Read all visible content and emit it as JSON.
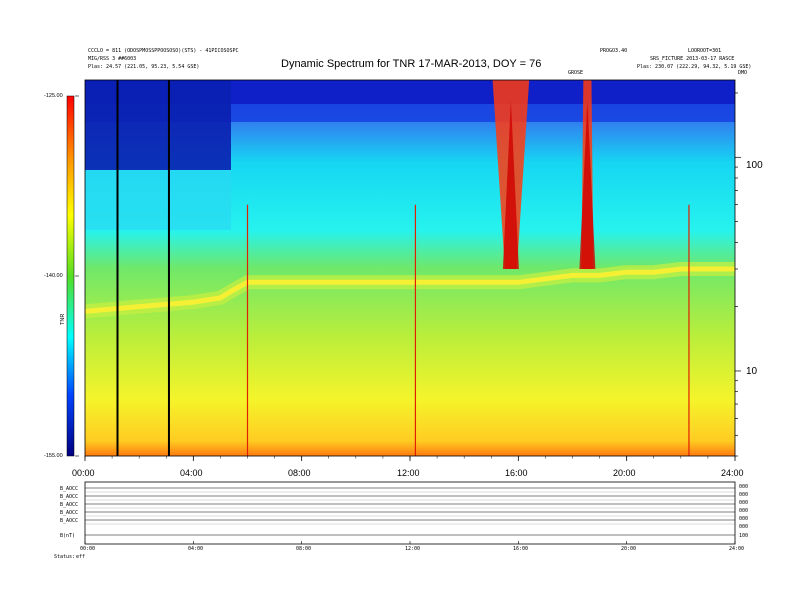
{
  "header": {
    "left_line1": "CCCLO = 811 (ODOSPMOSSPPOOSOSO)(STS) - 41PICOSOSPC",
    "left_line2": "MIG/RSS 3 ##6003",
    "left_line3": "Plas:   24.57 (221.05, 95.23, 5.54 GSE)",
    "right_line1": "PROGO3.40",
    "right_line2": "LOOROOT=301",
    "right_line3": "SRS_FICTURE 2013-03-17 RASCE",
    "right_line4": "Plas:   230.07 (222.29, 94.32, 5.19 GSE)",
    "title_suffix_right": "DMO",
    "title_mid_small": "GROSE"
  },
  "colors": {
    "bar_top": "#ff0000",
    "bar_bottom": "#000080",
    "background": "#ffffff"
  },
  "chart_data": {
    "type": "heatmap",
    "title": "Dynamic Spectrum for TNR 17-MAR-2013, DOY = 76",
    "x": {
      "ticks": [
        "00:00",
        "04:00",
        "08:00",
        "12:00",
        "16:00",
        "20:00",
        "24:00"
      ],
      "range_hours": [
        0,
        24
      ]
    },
    "y_right": {
      "scale": "log",
      "ticks": [
        "100",
        "10"
      ],
      "tick_values": [
        100,
        10
      ],
      "range": [
        4,
        230
      ]
    },
    "colorbar": {
      "ticks": [
        "-125.00",
        "-140.00",
        "-155.00"
      ],
      "tick_values": [
        -125,
        -140,
        -155
      ],
      "range": [
        -155,
        -125
      ],
      "label": "TNR"
    },
    "features": {
      "plasma_line_hours": [
        0,
        1,
        2,
        3,
        4,
        5,
        5.5,
        6,
        7,
        8,
        9,
        10,
        11,
        12,
        13,
        14,
        15,
        16,
        17,
        18,
        19,
        20,
        21,
        22,
        23,
        24
      ],
      "plasma_line_freq": [
        19,
        19.5,
        20,
        20.5,
        21,
        22,
        24,
        26,
        26,
        26,
        26,
        26,
        26,
        26,
        26,
        26,
        26,
        26,
        27,
        28,
        28,
        29,
        29,
        30,
        30,
        30
      ],
      "bursts": [
        {
          "start_hour": 15.05,
          "end_hour": 16.4,
          "min_freq": 30
        },
        {
          "start_hour": 18.4,
          "end_hour": 18.7,
          "min_freq": 30
        }
      ],
      "black_gap_hours": [
        1.2,
        3.1
      ],
      "spike_hours": [
        6.0,
        12.2,
        22.3
      ]
    },
    "lower_panel": {
      "row_labels": [
        "B_AOCC",
        "B_AOCC",
        "B_AOCC",
        "B_AOCC",
        "B_AOCC",
        "B(nT)"
      ],
      "right_labels": [
        "000",
        "000",
        "000",
        "000",
        "000",
        "000",
        "100"
      ],
      "x_ticks": [
        "00:00",
        "04:00",
        "08:00",
        "12:00",
        "16:00",
        "20:00",
        "24:00"
      ],
      "foot_left": "Status:",
      "foot_value": "eff"
    }
  }
}
